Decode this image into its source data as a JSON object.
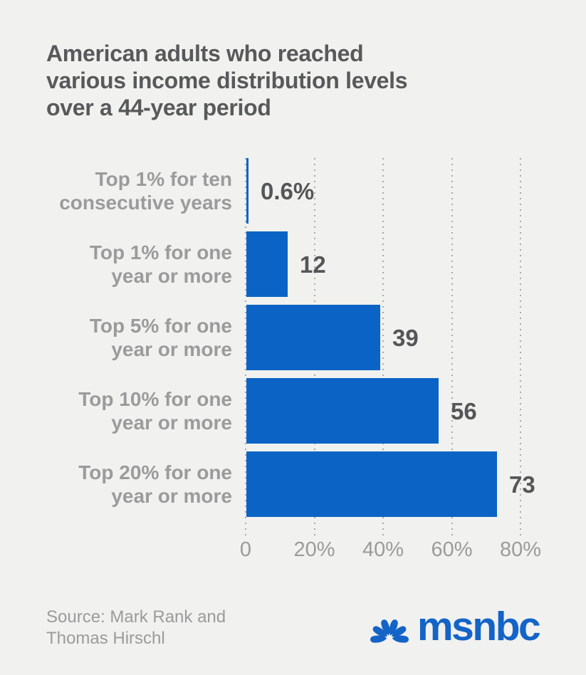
{
  "title_lines": [
    "American adults who reached",
    "various income distribution levels",
    "over a 44-year period"
  ],
  "chart_data": {
    "type": "bar",
    "orientation": "horizontal",
    "title": "American adults who reached various income distribution levels over a 44-year period",
    "categories": [
      "Top 1% for ten consecutive years",
      "Top 1% for one year or more",
      "Top 5% for one year or more",
      "Top 10% for one year or more",
      "Top 20% for one year or more"
    ],
    "values": [
      0.6,
      12,
      39,
      56,
      73
    ],
    "items": [
      {
        "label_lines": [
          "Top 1% for ten",
          "consecutive years"
        ],
        "value": 0.6,
        "value_label": "0.6%"
      },
      {
        "label_lines": [
          "Top 1% for one",
          "year or more"
        ],
        "value": 12,
        "value_label": "12"
      },
      {
        "label_lines": [
          "Top 5% for one",
          "year or more"
        ],
        "value": 39,
        "value_label": "39"
      },
      {
        "label_lines": [
          "Top 10% for one",
          "year or more"
        ],
        "value": 56,
        "value_label": "56"
      },
      {
        "label_lines": [
          "Top 20% for one",
          "year or more"
        ],
        "value": 73,
        "value_label": "73"
      }
    ],
    "xlabel": "",
    "ylabel": "",
    "xlim": [
      0,
      80
    ],
    "x_ticks": [
      {
        "value": 0,
        "label": "0"
      },
      {
        "value": 20,
        "label": "20%"
      },
      {
        "value": 40,
        "label": "40%"
      },
      {
        "value": 60,
        "label": "60%"
      },
      {
        "value": 80,
        "label": "80%"
      }
    ],
    "grid": "dotted-vertical",
    "legend": "none"
  },
  "footer": {
    "source_lines": [
      "Source: Mark Rank and",
      "Thomas Hirschl"
    ],
    "logo_text": "msnbc"
  },
  "colors": {
    "background": "#f1f1ef",
    "title": "#58595b",
    "label": "#9b9b9b",
    "value": "#555658",
    "bar": "#0b64c5",
    "grid": "#a8a8a6",
    "logo": "#1464c8"
  }
}
